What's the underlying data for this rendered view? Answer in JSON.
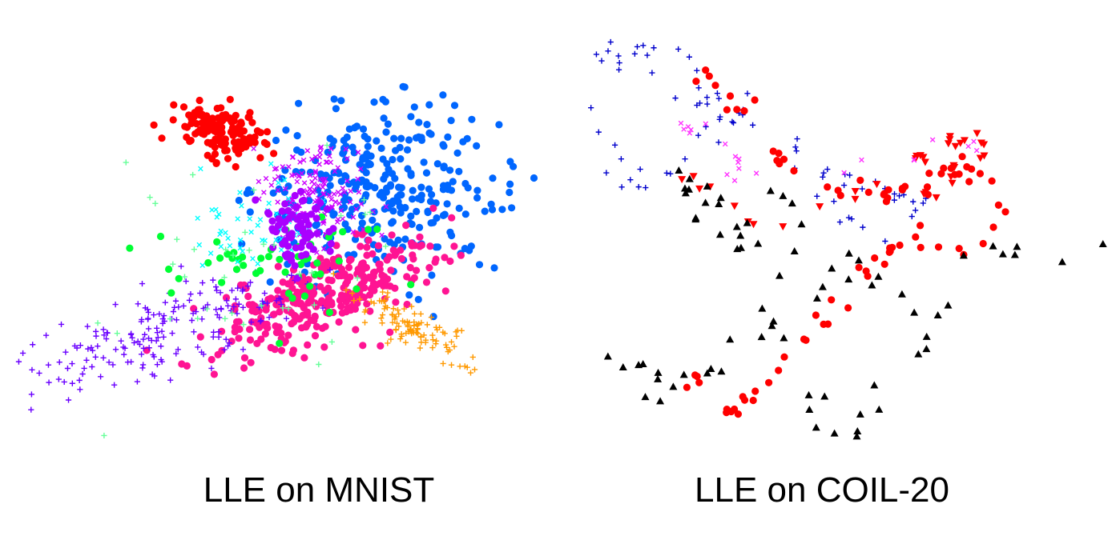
{
  "chart_data": [
    {
      "type": "scatter",
      "title": "LLE on MNIST",
      "xlabel": "",
      "ylabel": "",
      "grid": false,
      "legend": "none",
      "xlim": [
        0,
        100
      ],
      "ylim": [
        0,
        100
      ],
      "clusters": [
        {
          "name": "",
          "color": "#ff0000",
          "marker": "circle",
          "cx": 38,
          "cy": 76,
          "sx": 4.5,
          "sy": 2.5,
          "count": 150,
          "angle": -30
        },
        {
          "name": "",
          "color": "#0066ff",
          "marker": "circle",
          "cx": 67,
          "cy": 63,
          "sx": 11,
          "sy": 9,
          "count": 300,
          "angle": 0
        },
        {
          "name": "",
          "color": "#ff1493",
          "marker": "circle",
          "cx": 57,
          "cy": 40,
          "sx": 12,
          "sy": 4.5,
          "count": 320,
          "angle": 28
        },
        {
          "name": "",
          "color": "#6a00ff",
          "marker": "plus",
          "cx": 28,
          "cy": 32,
          "sx": 13,
          "sy": 4.5,
          "count": 190,
          "angle": 22
        },
        {
          "name": "",
          "color": "#ff9900",
          "marker": "plus",
          "cx": 73,
          "cy": 32,
          "sx": 7,
          "sy": 1.8,
          "count": 110,
          "angle": -35
        },
        {
          "name": "",
          "color": "#cc00ff",
          "marker": "cross",
          "cx": 55,
          "cy": 62,
          "sx": 5,
          "sy": 6,
          "count": 140,
          "angle": 0
        },
        {
          "name": "",
          "color": "#00ff33",
          "marker": "circle",
          "cx": 45,
          "cy": 48,
          "sx": 12,
          "sy": 6,
          "count": 50,
          "angle": 0
        },
        {
          "name": "",
          "color": "#00ffff",
          "marker": "cross",
          "cx": 44,
          "cy": 56,
          "sx": 7,
          "sy": 5,
          "count": 50,
          "angle": 0
        },
        {
          "name": "",
          "color": "#aa00ff",
          "marker": "circle",
          "cx": 52,
          "cy": 54,
          "sx": 3,
          "sy": 4,
          "count": 70,
          "angle": 0
        },
        {
          "name": "",
          "color": "#66ff99",
          "marker": "plus",
          "cx": 45,
          "cy": 45,
          "sx": 20,
          "sy": 14,
          "count": 40,
          "angle": 0
        }
      ]
    },
    {
      "type": "scatter",
      "title": "LLE on COIL-20",
      "xlabel": "",
      "ylabel": "",
      "grid": false,
      "legend": "none",
      "xlim": [
        0,
        100
      ],
      "ylim": [
        0,
        100
      ],
      "clusters": [
        {
          "name": "",
          "color": "#0000cc",
          "marker": "plus",
          "path": [
            [
              2,
              88
            ],
            [
              8,
              96
            ],
            [
              14,
              98
            ],
            [
              20,
              93
            ],
            [
              24,
              87
            ],
            [
              25,
              80
            ],
            [
              22,
              74
            ],
            [
              18,
              70
            ],
            [
              10,
              66
            ],
            [
              5,
              72
            ],
            [
              2,
              80
            ]
          ],
          "count": 40,
          "noise": 2.5
        },
        {
          "name": "",
          "color": "#0000cc",
          "marker": "plus",
          "path": [
            [
              22,
              88
            ],
            [
              28,
              85
            ],
            [
              32,
              80
            ],
            [
              36,
              74
            ],
            [
              40,
              72
            ],
            [
              46,
              68
            ],
            [
              52,
              66
            ],
            [
              58,
              62
            ],
            [
              64,
              60
            ],
            [
              58,
              58
            ],
            [
              50,
              57
            ],
            [
              44,
              58
            ]
          ],
          "count": 40,
          "noise": 2
        },
        {
          "name": "",
          "color": "#ff0000",
          "marker": "circle",
          "path": [
            [
              18,
              84
            ],
            [
              22,
              90
            ],
            [
              26,
              88
            ],
            [
              30,
              84
            ],
            [
              33,
              78
            ],
            [
              36,
              72
            ],
            [
              40,
              68
            ],
            [
              45,
              66
            ],
            [
              50,
              64
            ],
            [
              56,
              62
            ],
            [
              62,
              64
            ],
            [
              68,
              66
            ],
            [
              74,
              70
            ],
            [
              78,
              66
            ],
            [
              80,
              58
            ],
            [
              76,
              50
            ],
            [
              70,
              49
            ],
            [
              66,
              52
            ],
            [
              62,
              54
            ],
            [
              58,
              50
            ],
            [
              55,
              45
            ],
            [
              52,
              40
            ],
            [
              48,
              36
            ],
            [
              44,
              30
            ],
            [
              40,
              24
            ],
            [
              36,
              18
            ],
            [
              32,
              14
            ],
            [
              28,
              12
            ],
            [
              24,
              16
            ],
            [
              21,
              22
            ]
          ],
          "count": 85,
          "noise": 1.3
        },
        {
          "name": "",
          "color": "#ff0000",
          "marker": "triangle-down",
          "path": [
            [
              18,
              70
            ],
            [
              24,
              64
            ],
            [
              30,
              58
            ],
            [
              36,
              54
            ],
            [
              42,
              56
            ],
            [
              48,
              60
            ],
            [
              56,
              64
            ],
            [
              62,
              68
            ],
            [
              66,
              72
            ],
            [
              70,
              76
            ],
            [
              74,
              76
            ],
            [
              76,
              72
            ],
            [
              72,
              68
            ],
            [
              68,
              64
            ],
            [
              64,
              62
            ]
          ],
          "count": 35,
          "noise": 1.5
        },
        {
          "name": "",
          "color": "#ff33ff",
          "marker": "cross",
          "path": [
            [
              20,
              80
            ],
            [
              24,
              77
            ],
            [
              28,
              74
            ],
            [
              30,
              70
            ],
            [
              32,
              66
            ],
            [
              62,
              70
            ],
            [
              66,
              73
            ],
            [
              70,
              75
            ],
            [
              74,
              74
            ]
          ],
          "count": 22,
          "noise": 1.5
        },
        {
          "name": "",
          "color": "#000000",
          "marker": "triangle-up",
          "path": [
            [
              2,
              30
            ],
            [
              7,
              24
            ],
            [
              12,
              20
            ],
            [
              18,
              16
            ],
            [
              24,
              22
            ],
            [
              30,
              28
            ],
            [
              34,
              32
            ],
            [
              40,
              30
            ],
            [
              44,
              22
            ],
            [
              46,
              14
            ],
            [
              48,
              8
            ],
            [
              52,
              6
            ],
            [
              56,
              12
            ],
            [
              58,
              20
            ],
            [
              62,
              26
            ],
            [
              66,
              30
            ],
            [
              68,
              34
            ],
            [
              64,
              38
            ],
            [
              58,
              42
            ],
            [
              52,
              46
            ],
            [
              46,
              40
            ],
            [
              40,
              44
            ],
            [
              36,
              48
            ],
            [
              30,
              52
            ],
            [
              26,
              56
            ],
            [
              20,
              60
            ],
            [
              18,
              68
            ],
            [
              28,
              64
            ],
            [
              36,
              62
            ],
            [
              42,
              58
            ],
            [
              64,
              46
            ],
            [
              70,
              48
            ],
            [
              76,
              50
            ],
            [
              82,
              52
            ],
            [
              90,
              50
            ],
            [
              96,
              50
            ],
            [
              99,
              48
            ]
          ],
          "count": 75,
          "noise": 2.2
        }
      ]
    }
  ]
}
